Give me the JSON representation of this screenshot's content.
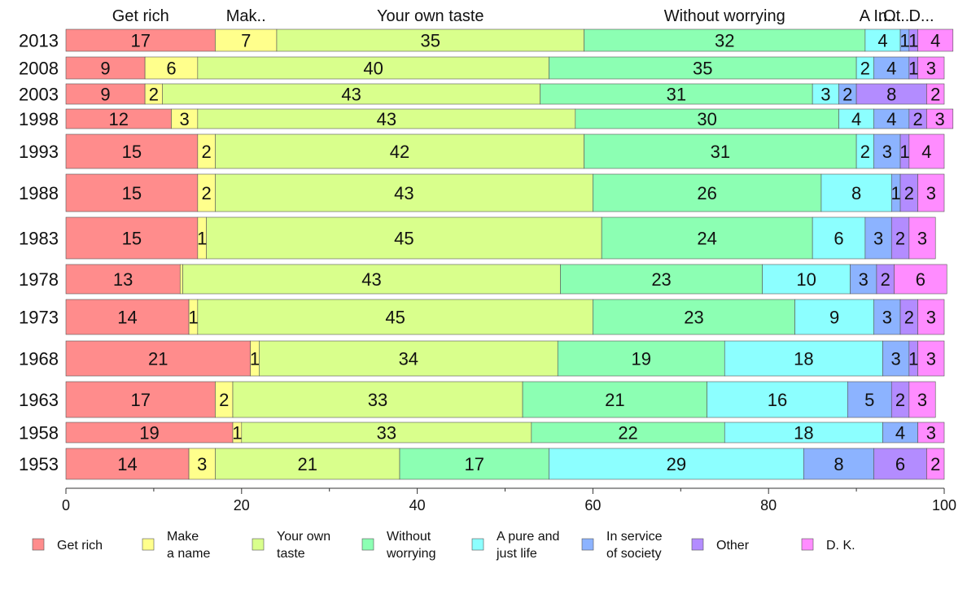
{
  "chart_data": {
    "type": "bar",
    "orientation": "horizontal",
    "stacked": true,
    "categories": [
      "2013",
      "2008",
      "2003",
      "1998",
      "1993",
      "1988",
      "1983",
      "1978",
      "1973",
      "1968",
      "1963",
      "1958",
      "1953"
    ],
    "series": [
      {
        "name": "Get rich",
        "color": "#ff8c8c",
        "values": [
          17,
          9,
          9,
          12,
          15,
          15,
          15,
          13,
          14,
          21,
          17,
          19,
          14
        ]
      },
      {
        "name": "Make a name",
        "color": "#ffff8c",
        "values": [
          7,
          6,
          2,
          3,
          2,
          2,
          1,
          0.3,
          1,
          1,
          2,
          1,
          3
        ]
      },
      {
        "name": "Your own taste",
        "color": "#d9ff8c",
        "values": [
          35,
          40,
          43,
          43,
          42,
          43,
          45,
          43,
          45,
          34,
          33,
          33,
          21
        ]
      },
      {
        "name": "Without worrying",
        "color": "#8cffb3",
        "values": [
          32,
          35,
          31,
          30,
          31,
          26,
          24,
          23,
          23,
          19,
          21,
          22,
          17
        ]
      },
      {
        "name": "A pure and just life",
        "color": "#8cffff",
        "values": [
          4,
          2,
          3,
          4,
          2,
          8,
          6,
          10,
          9,
          18,
          16,
          18,
          29
        ]
      },
      {
        "name": "In service of society",
        "color": "#8cb3ff",
        "values": [
          1,
          4,
          2,
          4,
          3,
          1,
          3,
          3,
          3,
          3,
          5,
          4,
          8
        ]
      },
      {
        "name": "Other",
        "color": "#b38cff",
        "values": [
          1,
          1,
          8,
          2,
          1,
          2,
          2,
          2,
          2,
          1,
          2,
          0,
          6
        ]
      },
      {
        "name": "D. K.",
        "color": "#ff8cff",
        "values": [
          4,
          3,
          2,
          3,
          4,
          3,
          3,
          6,
          3,
          3,
          3,
          3,
          2
        ]
      }
    ],
    "top_labels": [
      "Get rich",
      "Mak..",
      "Your own taste",
      "Without worrying",
      "A ...",
      "In...",
      "Ot...",
      "D..."
    ],
    "xlim": [
      0,
      100
    ],
    "x_ticks": [
      0,
      20,
      40,
      60,
      80,
      100
    ],
    "legend": {
      "placement": "bottom",
      "entries": [
        {
          "line1": "Get rich",
          "line2": ""
        },
        {
          "line1": "Make",
          "line2": "a name"
        },
        {
          "line1": "Your own",
          "line2": "taste"
        },
        {
          "line1": "Without",
          "line2": "worrying"
        },
        {
          "line1": "A pure and",
          "line2": "just life"
        },
        {
          "line1": "In service",
          "line2": "of society"
        },
        {
          "line1": "Other",
          "line2": ""
        },
        {
          "line1": "D. K.",
          "line2": ""
        }
      ]
    },
    "grid": false,
    "title": "",
    "xlabel": "",
    "ylabel": ""
  }
}
